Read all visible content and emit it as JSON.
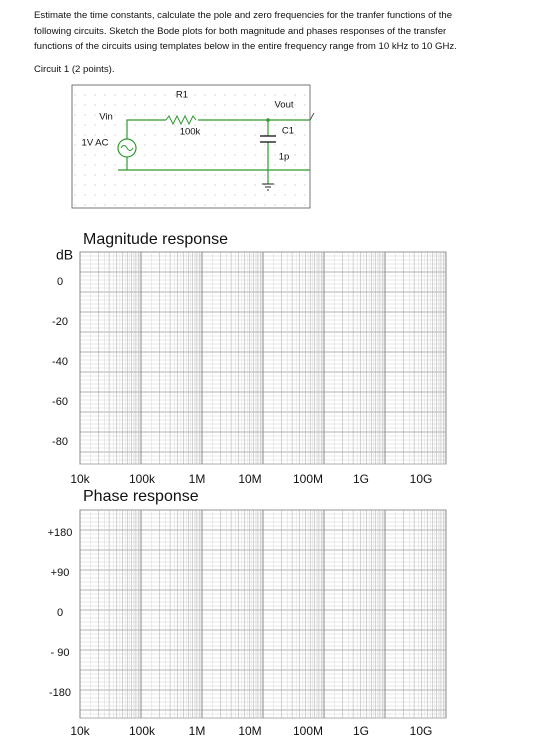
{
  "text": {
    "paragraph": [
      "Estimate the time constants, calculate  the pole and zero frequencies for the tranfer functions of the",
      "following circuits.  Sketch the Bode plots for both magnitude and phases responses of the transfer",
      "functions of the circuits using templates below in the entire frequency range from 10 kHz to 10 GHz."
    ],
    "circuit_heading": "Circuit 1 (2 points)."
  },
  "circuit": {
    "r1": "R1",
    "r1_value": "100k",
    "vin": "Vin",
    "source": "1V AC",
    "vout": "Vout",
    "c1": "C1",
    "c1_value": "1p"
  },
  "magnitude_plot": {
    "title": "Magnitude response",
    "y_unit": "dB",
    "y_labels": [
      "0",
      "-20",
      "-40",
      "-60",
      "-80"
    ],
    "x_labels": [
      "10k",
      "100k",
      "1M",
      "10M",
      "100M",
      "1G",
      "10G"
    ]
  },
  "phase_plot": {
    "title": "Phase response",
    "y_labels": [
      "+180",
      "+90",
      "0",
      "- 90",
      "-180"
    ],
    "x_labels": [
      "10k",
      "100k",
      "1M",
      "10M",
      "100M",
      "1G",
      "10G"
    ]
  }
}
